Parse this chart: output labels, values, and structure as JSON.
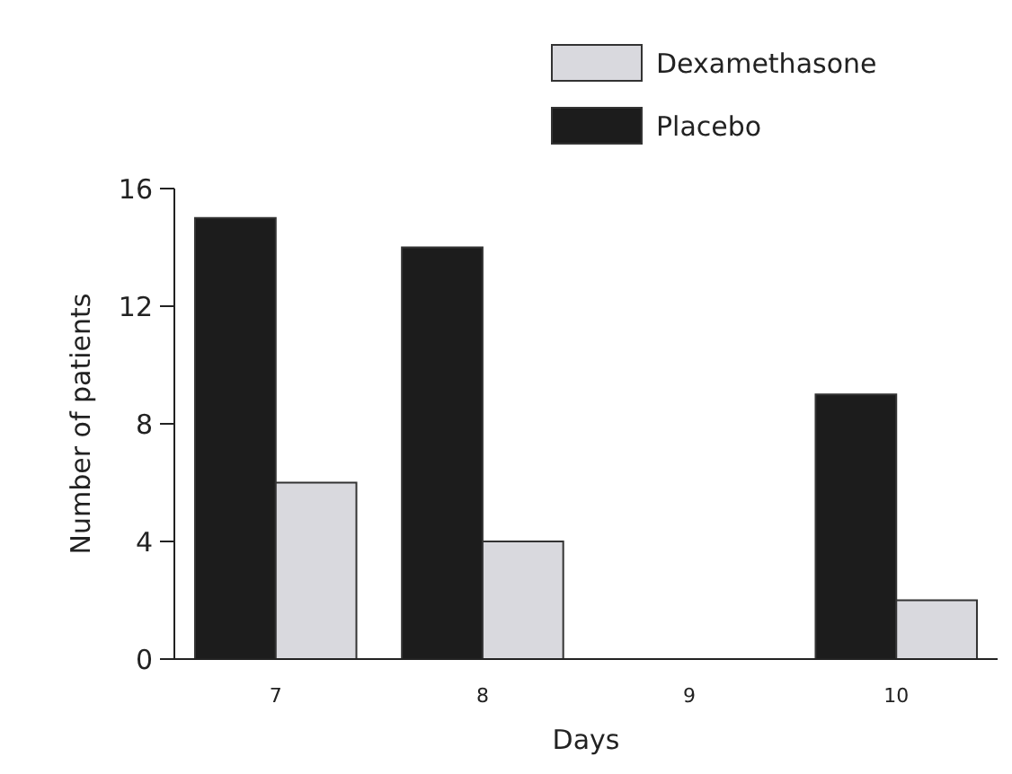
{
  "chart_data": {
    "type": "bar",
    "xlabel": "Days",
    "ylabel": "Number of patients",
    "categories": [
      "7",
      "8",
      "9",
      "10"
    ],
    "series": [
      {
        "name": "Placebo",
        "color": "#1c1c1c",
        "values": [
          15,
          14,
          0,
          9
        ]
      },
      {
        "name": "Dexamethasone",
        "color": "#d9d9de",
        "values": [
          6,
          4,
          0,
          2
        ]
      }
    ],
    "ylim": [
      0,
      16
    ],
    "yticks": [
      0,
      4,
      8,
      12,
      16
    ],
    "grid": false,
    "legend": "top right"
  }
}
